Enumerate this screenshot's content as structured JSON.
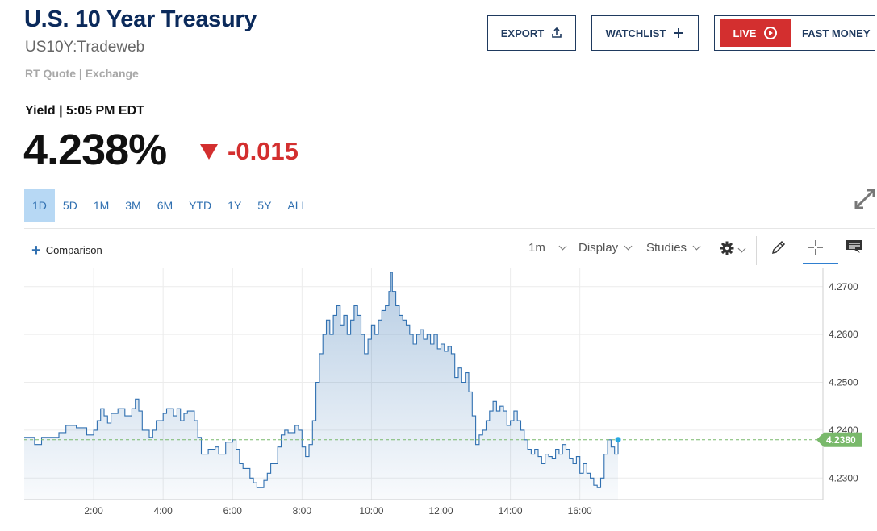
{
  "header": {
    "title": "U.S. 10 Year Treasury",
    "symbol": "US10Y:Tradeweb",
    "quote_source": "RT Quote | Exchange"
  },
  "buttons": {
    "export": "EXPORT",
    "watchlist": "WATCHLIST",
    "live": "LIVE",
    "fast_money": "FAST MONEY"
  },
  "quote": {
    "label": "Yield | 5:05 PM EDT",
    "price": "4.238%",
    "change": "-0.015",
    "direction": "down"
  },
  "ranges": [
    "1D",
    "5D",
    "1M",
    "3M",
    "6M",
    "YTD",
    "1Y",
    "5Y",
    "ALL"
  ],
  "active_range": "1D",
  "toolbar": {
    "comparison": "Comparison",
    "interval": "1m",
    "display": "Display",
    "studies": "Studies"
  },
  "colors": {
    "brand": "#0b2a5b",
    "down": "#d32f2f",
    "line": "#2f6fb0",
    "last_value": "#79b96b",
    "active_range": "#b7d8f4"
  },
  "icons": [
    "upload-icon",
    "plus-icon",
    "play-icon",
    "expand-icon",
    "gear-icon",
    "pencil-icon",
    "crosshair-icon",
    "comment-icon"
  ],
  "chart_data": {
    "type": "area",
    "x_unit": "hour of day",
    "y_unit": "yield %",
    "xlim": [
      0.0,
      23.0
    ],
    "ylim": [
      4.2255,
      4.274
    ],
    "yticks": [
      4.23,
      4.24,
      4.25,
      4.26,
      4.27
    ],
    "ytick_labels": [
      "4.2300",
      "4.2400",
      "4.2500",
      "4.2600",
      "4.2700"
    ],
    "xticks": [
      2,
      4,
      6,
      8,
      10,
      12,
      14,
      16
    ],
    "xtick_labels": [
      "2:00",
      "4:00",
      "6:00",
      "8:00",
      "10:00",
      "12:00",
      "14:00",
      "16:00"
    ],
    "last_value": 4.238,
    "last_label": "4.2380",
    "grid": true,
    "points": [
      [
        0.0,
        4.2385
      ],
      [
        0.3,
        4.237
      ],
      [
        0.5,
        4.2385
      ],
      [
        0.8,
        4.2385
      ],
      [
        1.0,
        4.2395
      ],
      [
        1.2,
        4.241
      ],
      [
        1.5,
        4.2405
      ],
      [
        1.8,
        4.239
      ],
      [
        2.0,
        4.24
      ],
      [
        2.1,
        4.242
      ],
      [
        2.2,
        4.2445
      ],
      [
        2.3,
        4.243
      ],
      [
        2.4,
        4.2415
      ],
      [
        2.5,
        4.2435
      ],
      [
        2.7,
        4.2445
      ],
      [
        2.9,
        4.243
      ],
      [
        3.1,
        4.2445
      ],
      [
        3.2,
        4.2465
      ],
      [
        3.3,
        4.244
      ],
      [
        3.4,
        4.24
      ],
      [
        3.6,
        4.2385
      ],
      [
        3.7,
        4.24
      ],
      [
        3.8,
        4.242
      ],
      [
        4.0,
        4.2435
      ],
      [
        4.1,
        4.2445
      ],
      [
        4.3,
        4.243
      ],
      [
        4.4,
        4.2445
      ],
      [
        4.5,
        4.242
      ],
      [
        4.6,
        4.2435
      ],
      [
        4.7,
        4.244
      ],
      [
        4.9,
        4.242
      ],
      [
        5.0,
        4.2385
      ],
      [
        5.1,
        4.235
      ],
      [
        5.3,
        4.236
      ],
      [
        5.5,
        4.2365
      ],
      [
        5.6,
        4.235
      ],
      [
        5.8,
        4.2375
      ],
      [
        6.0,
        4.238
      ],
      [
        6.1,
        4.236
      ],
      [
        6.2,
        4.233
      ],
      [
        6.3,
        4.232
      ],
      [
        6.5,
        4.23
      ],
      [
        6.6,
        4.229
      ],
      [
        6.7,
        4.228
      ],
      [
        6.9,
        4.2295
      ],
      [
        7.0,
        4.231
      ],
      [
        7.1,
        4.233
      ],
      [
        7.3,
        4.2365
      ],
      [
        7.4,
        4.239
      ],
      [
        7.5,
        4.24
      ],
      [
        7.6,
        4.2395
      ],
      [
        7.8,
        4.241
      ],
      [
        7.9,
        4.24
      ],
      [
        8.0,
        4.2365
      ],
      [
        8.1,
        4.2345
      ],
      [
        8.2,
        4.237
      ],
      [
        8.3,
        4.242
      ],
      [
        8.4,
        4.25
      ],
      [
        8.5,
        4.256
      ],
      [
        8.6,
        4.26
      ],
      [
        8.7,
        4.263
      ],
      [
        8.8,
        4.26
      ],
      [
        8.9,
        4.264
      ],
      [
        9.0,
        4.266
      ],
      [
        9.1,
        4.262
      ],
      [
        9.2,
        4.264
      ],
      [
        9.3,
        4.26
      ],
      [
        9.4,
        4.263
      ],
      [
        9.5,
        4.266
      ],
      [
        9.6,
        4.264
      ],
      [
        9.7,
        4.26
      ],
      [
        9.8,
        4.256
      ],
      [
        9.9,
        4.259
      ],
      [
        10.0,
        4.262
      ],
      [
        10.1,
        4.26
      ],
      [
        10.2,
        4.263
      ],
      [
        10.3,
        4.265
      ],
      [
        10.4,
        4.266
      ],
      [
        10.5,
        4.269
      ],
      [
        10.55,
        4.273
      ],
      [
        10.6,
        4.269
      ],
      [
        10.7,
        4.266
      ],
      [
        10.8,
        4.264
      ],
      [
        10.9,
        4.263
      ],
      [
        11.0,
        4.262
      ],
      [
        11.1,
        4.26
      ],
      [
        11.2,
        4.258
      ],
      [
        11.3,
        4.26
      ],
      [
        11.4,
        4.261
      ],
      [
        11.5,
        4.259
      ],
      [
        11.6,
        4.26
      ],
      [
        11.7,
        4.258
      ],
      [
        11.8,
        4.26
      ],
      [
        11.9,
        4.257
      ],
      [
        12.0,
        4.258
      ],
      [
        12.1,
        4.2565
      ],
      [
        12.2,
        4.2575
      ],
      [
        12.3,
        4.256
      ],
      [
        12.4,
        4.251
      ],
      [
        12.5,
        4.253
      ],
      [
        12.6,
        4.25
      ],
      [
        12.7,
        4.252
      ],
      [
        12.8,
        4.248
      ],
      [
        12.9,
        4.243
      ],
      [
        13.0,
        4.237
      ],
      [
        13.1,
        4.239
      ],
      [
        13.2,
        4.24
      ],
      [
        13.3,
        4.242
      ],
      [
        13.4,
        4.244
      ],
      [
        13.5,
        4.246
      ],
      [
        13.6,
        4.244
      ],
      [
        13.7,
        4.245
      ],
      [
        13.8,
        4.244
      ],
      [
        13.9,
        4.241
      ],
      [
        14.0,
        4.242
      ],
      [
        14.1,
        4.244
      ],
      [
        14.2,
        4.242
      ],
      [
        14.3,
        4.24
      ],
      [
        14.4,
        4.238
      ],
      [
        14.5,
        4.236
      ],
      [
        14.6,
        4.235
      ],
      [
        14.7,
        4.236
      ],
      [
        14.8,
        4.2345
      ],
      [
        14.9,
        4.233
      ],
      [
        15.0,
        4.235
      ],
      [
        15.1,
        4.2345
      ],
      [
        15.2,
        4.234
      ],
      [
        15.3,
        4.236
      ],
      [
        15.4,
        4.235
      ],
      [
        15.5,
        4.237
      ],
      [
        15.6,
        4.236
      ],
      [
        15.7,
        4.234
      ],
      [
        15.8,
        4.233
      ],
      [
        15.9,
        4.2345
      ],
      [
        16.0,
        4.231
      ],
      [
        16.1,
        4.233
      ],
      [
        16.2,
        4.231
      ],
      [
        16.3,
        4.23
      ],
      [
        16.4,
        4.2285
      ],
      [
        16.5,
        4.228
      ],
      [
        16.6,
        4.23
      ],
      [
        16.7,
        4.235
      ],
      [
        16.8,
        4.238
      ],
      [
        16.9,
        4.2365
      ],
      [
        17.0,
        4.235
      ],
      [
        17.1,
        4.238
      ]
    ]
  }
}
